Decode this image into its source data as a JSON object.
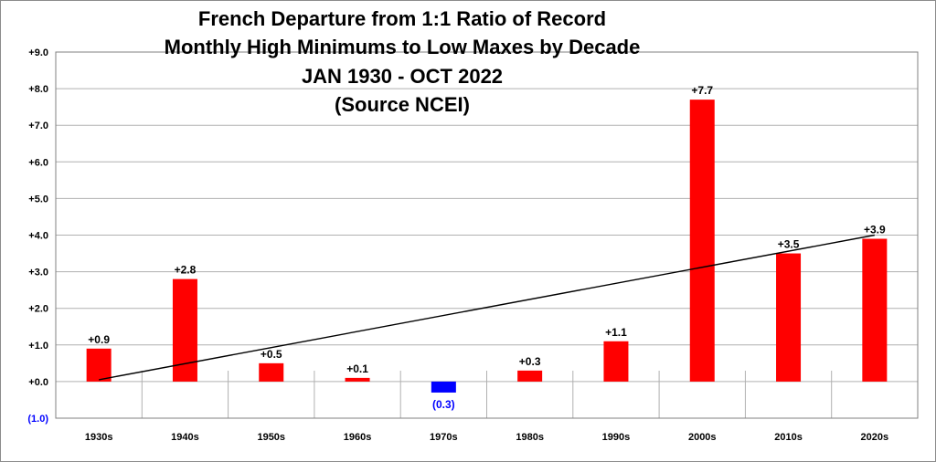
{
  "chart_data": {
    "type": "bar",
    "title_lines": [
      "French Departure from 1:1 Ratio of Record",
      "Monthly High Minimums to Low Maxes by Decade",
      "JAN 1930 - OCT 2022",
      "(Source NCEI)"
    ],
    "categories": [
      "1930s",
      "1940s",
      "1950s",
      "1960s",
      "1970s",
      "1980s",
      "1990s",
      "2000s",
      "2010s",
      "2020s"
    ],
    "values": [
      0.9,
      2.8,
      0.5,
      0.1,
      -0.3,
      0.3,
      1.1,
      7.7,
      3.5,
      3.9
    ],
    "data_labels": [
      "+0.9",
      "+2.8",
      "+0.5",
      "+0.1",
      "(0.3)",
      "+0.3",
      "+1.1",
      "+7.7",
      "+3.5",
      "+3.9"
    ],
    "ylim": [
      -1.0,
      9.0
    ],
    "yticks": [
      -1.0,
      0.0,
      1.0,
      2.0,
      3.0,
      4.0,
      5.0,
      6.0,
      7.0,
      8.0,
      9.0
    ],
    "ytick_labels": [
      "(1.0)",
      "+0.0",
      "+1.0",
      "+2.0",
      "+3.0",
      "+4.0",
      "+5.0",
      "+6.0",
      "+7.0",
      "+8.0",
      "+9.0"
    ],
    "trendline": {
      "start": 0.05,
      "end": 4.0
    },
    "grid": true,
    "legend": false,
    "colors": {
      "positive": "#ff0000",
      "negative": "#0000ff",
      "trendline": "#000000",
      "grid": "#b0b0b0",
      "negative_label": "#0000ff",
      "positive_label": "#000000"
    }
  }
}
